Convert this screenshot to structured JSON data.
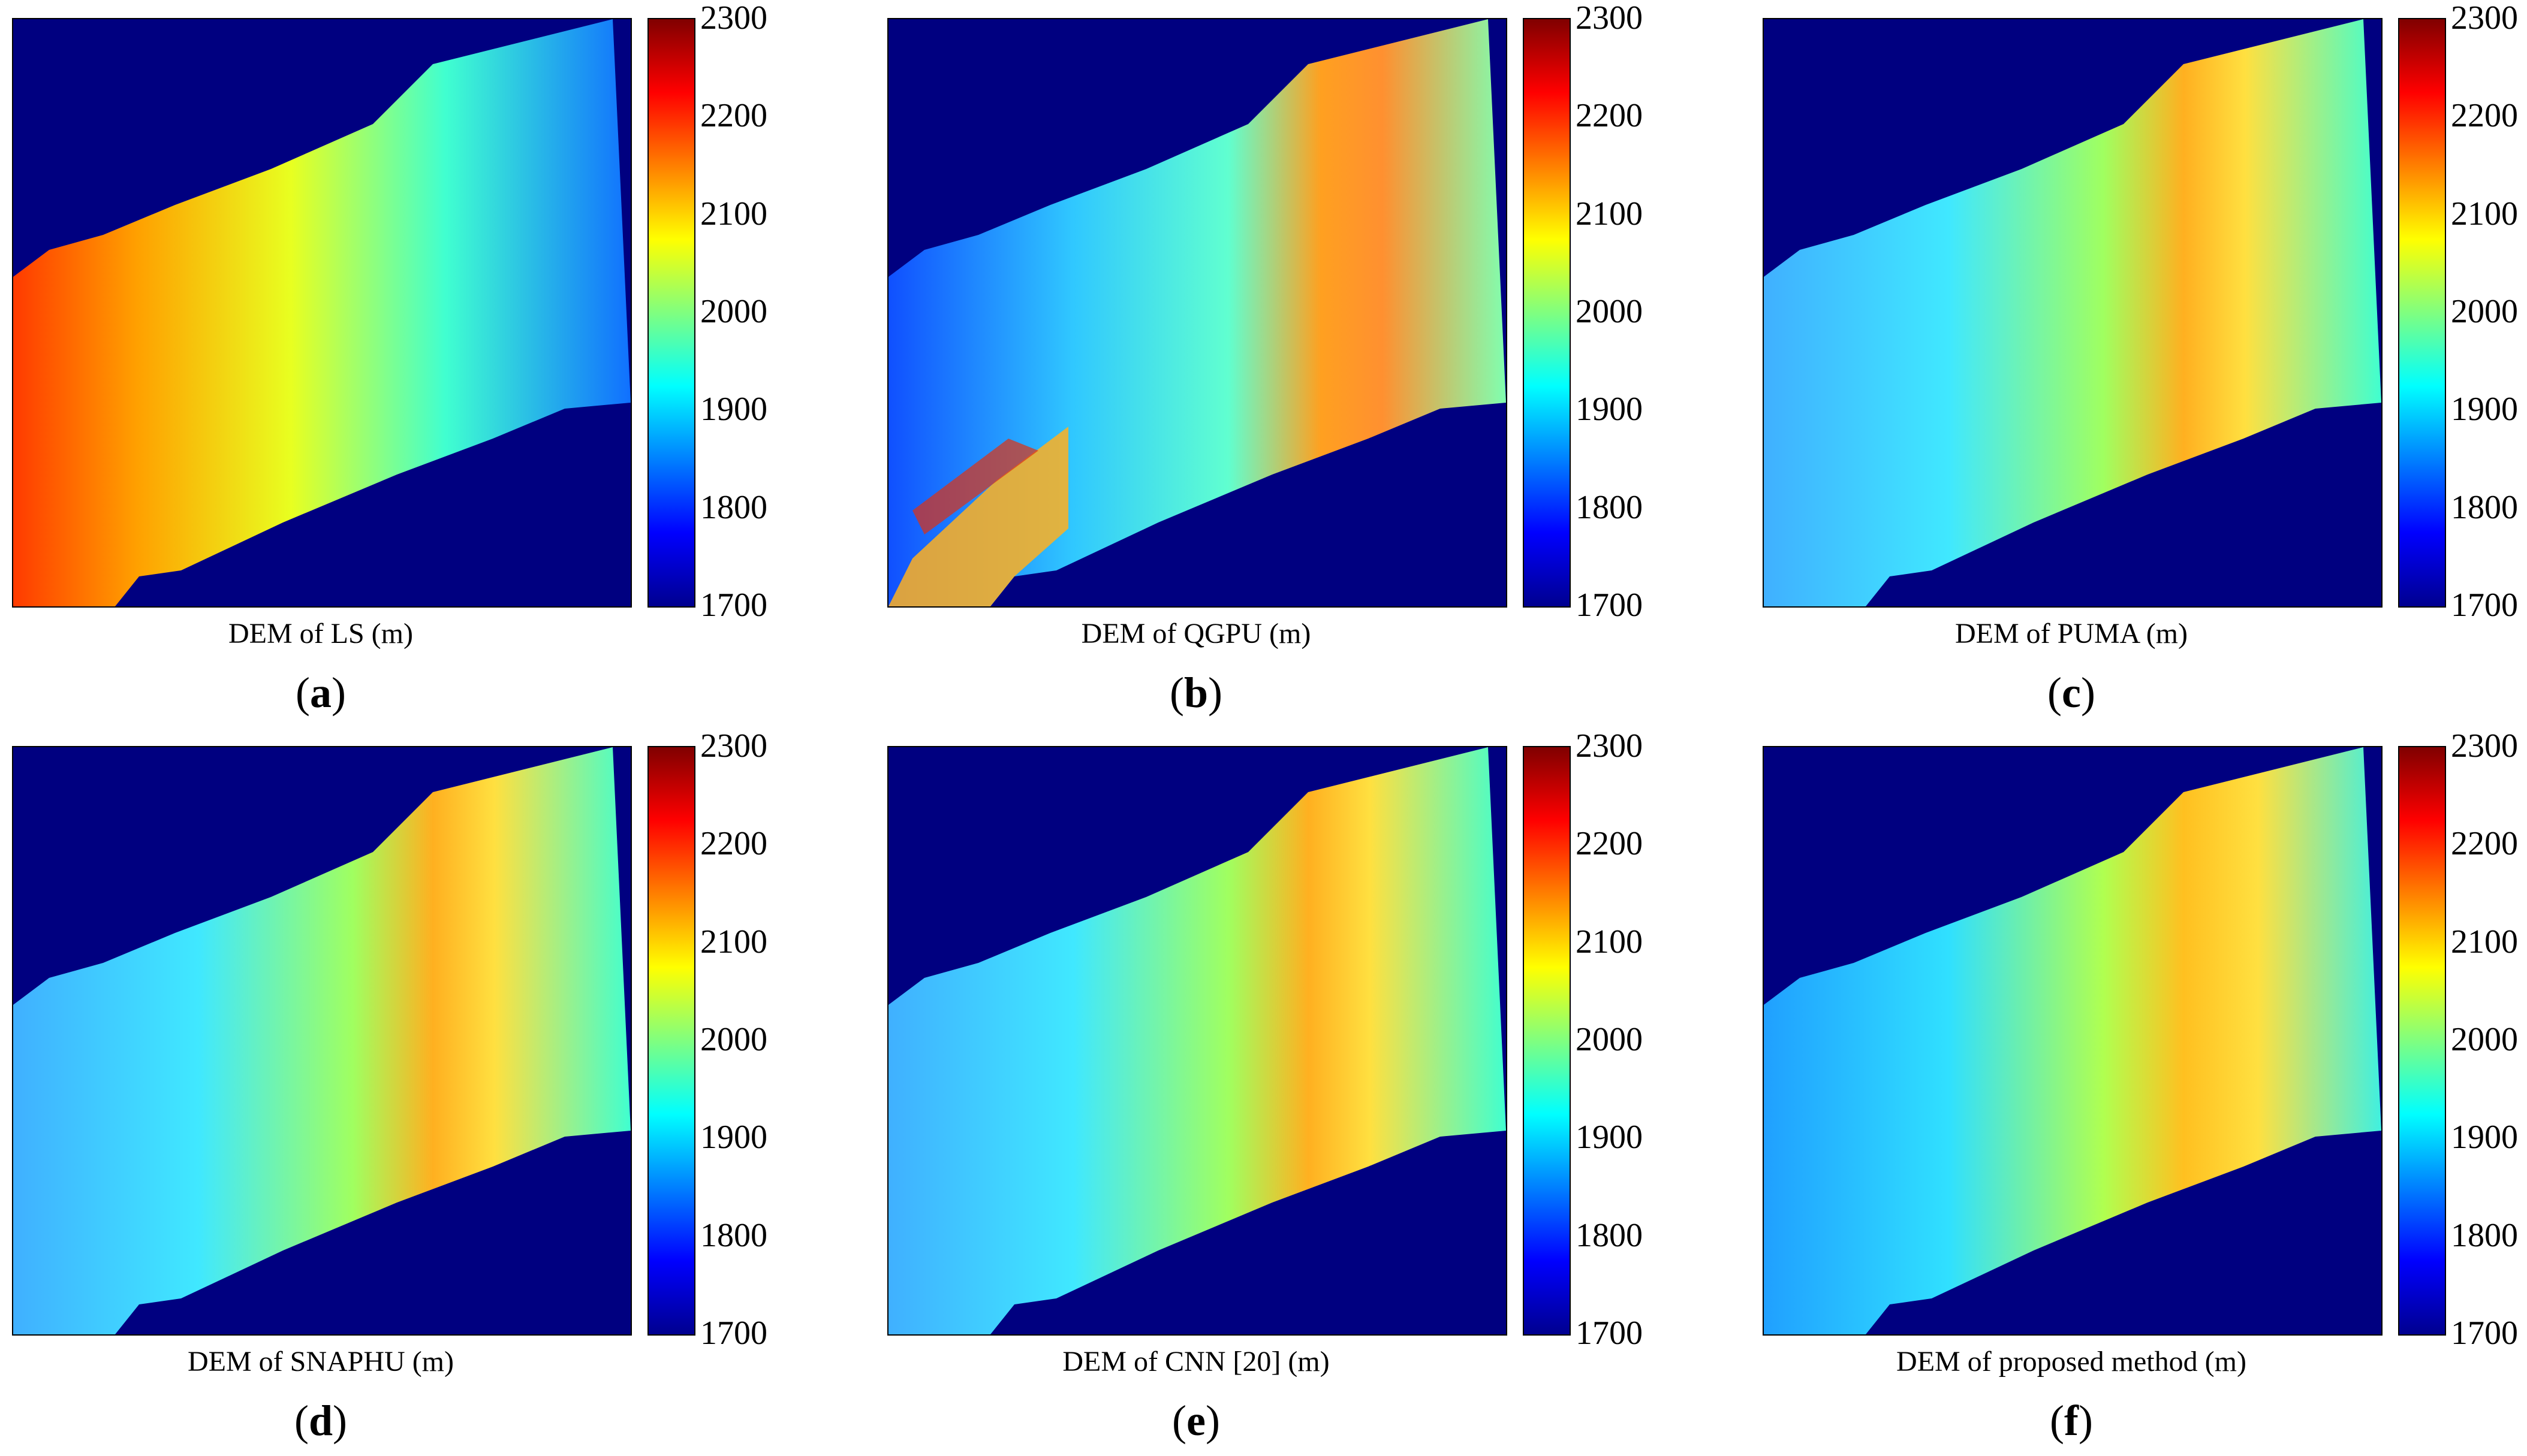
{
  "colorbar": {
    "ticks": [
      "2300",
      "2200",
      "2100",
      "2000",
      "1900",
      "1800",
      "1700"
    ]
  },
  "panels": [
    {
      "caption": "DEM of LS (m)",
      "label": "a"
    },
    {
      "caption": "DEM of QGPU (m)",
      "label": "b"
    },
    {
      "caption": "DEM of PUMA (m)",
      "label": "c"
    },
    {
      "caption": "DEM of SNAPHU (m)",
      "label": "d"
    },
    {
      "caption": "DEM of CNN [20] (m)",
      "label": "e"
    },
    {
      "caption": "DEM of proposed method (m)",
      "label": "f"
    }
  ],
  "colors": {
    "background": "#000080",
    "low": "#0000ff",
    "mid": "#7fff7f",
    "high": "#ff0000"
  }
}
